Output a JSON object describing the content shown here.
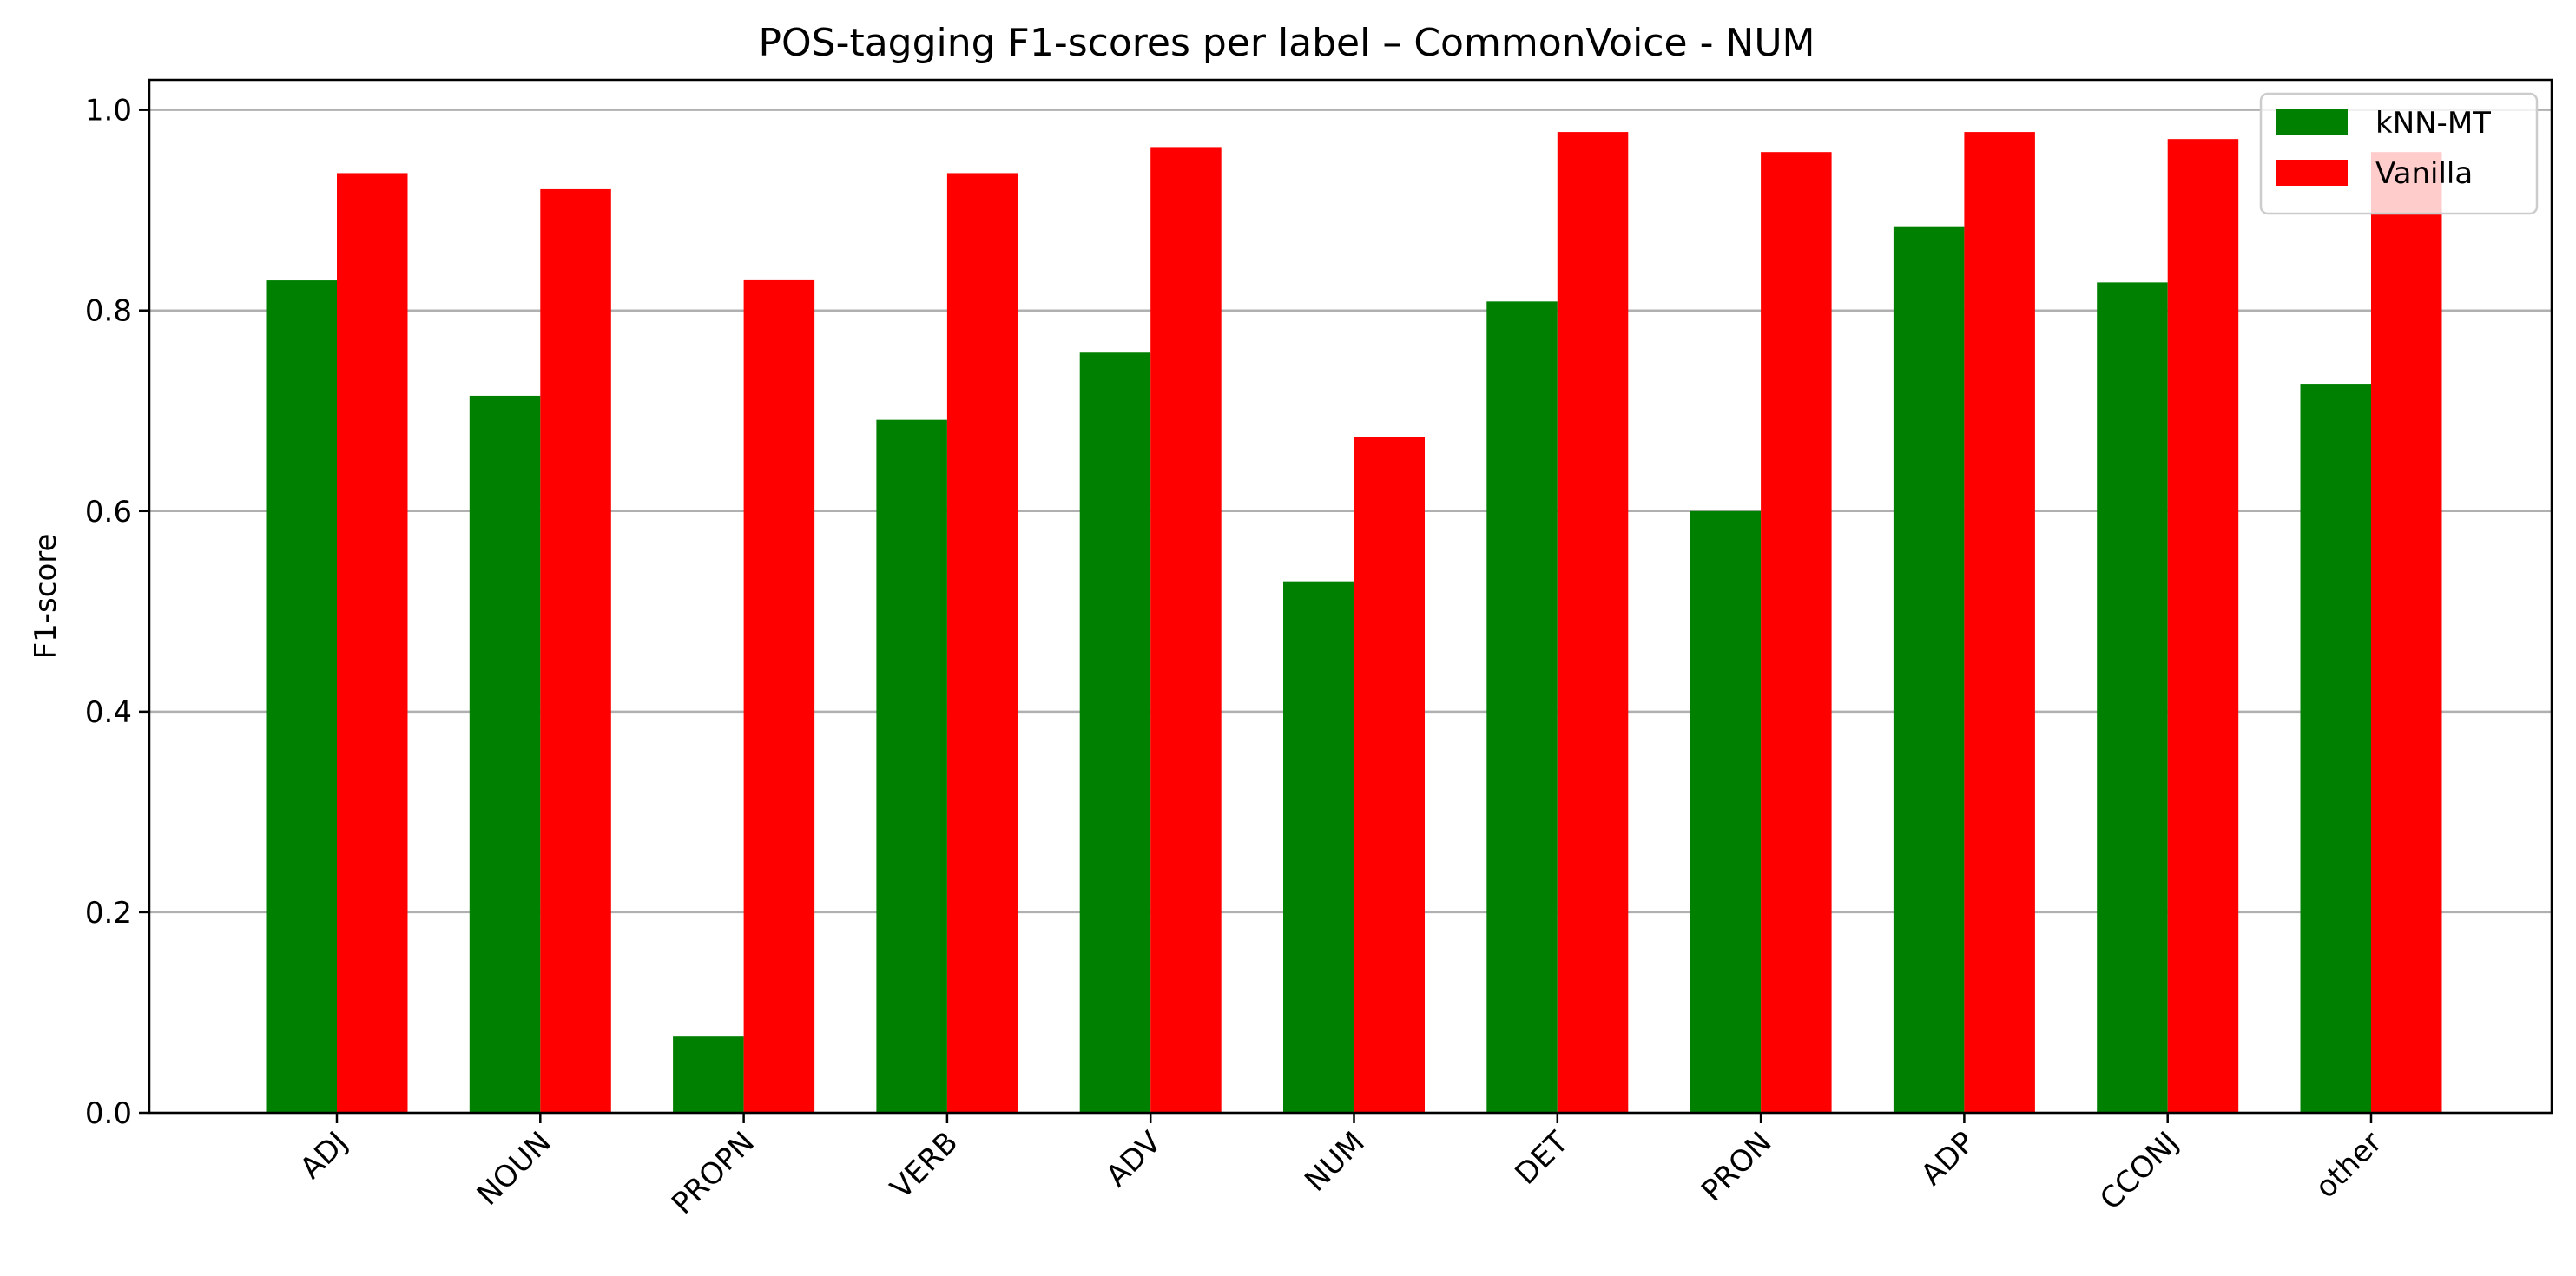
{
  "chart_data": {
    "type": "bar",
    "title": "POS-tagging F1-scores per label – CommonVoice - NUM",
    "xlabel": "",
    "ylabel": "F1-score",
    "ylim": [
      0,
      1.03
    ],
    "yticks": [
      "0.0",
      "0.2",
      "0.4",
      "0.6",
      "0.8",
      "1.0"
    ],
    "grid": "y",
    "legend_position": "top-right",
    "categories": [
      "ADJ",
      "NOUN",
      "PROPN",
      "VERB",
      "ADV",
      "NUM",
      "DET",
      "PRON",
      "ADP",
      "CCONJ",
      "other"
    ],
    "series": [
      {
        "name": "kNN-MT",
        "color": "#008000",
        "values": [
          0.83,
          0.715,
          0.076,
          0.691,
          0.758,
          0.53,
          0.809,
          0.6,
          0.884,
          0.828,
          0.727
        ]
      },
      {
        "name": "Vanilla",
        "color": "#ff0000",
        "values": [
          0.937,
          0.921,
          0.831,
          0.937,
          0.963,
          0.674,
          0.978,
          0.958,
          0.978,
          0.971,
          0.958
        ]
      }
    ]
  }
}
